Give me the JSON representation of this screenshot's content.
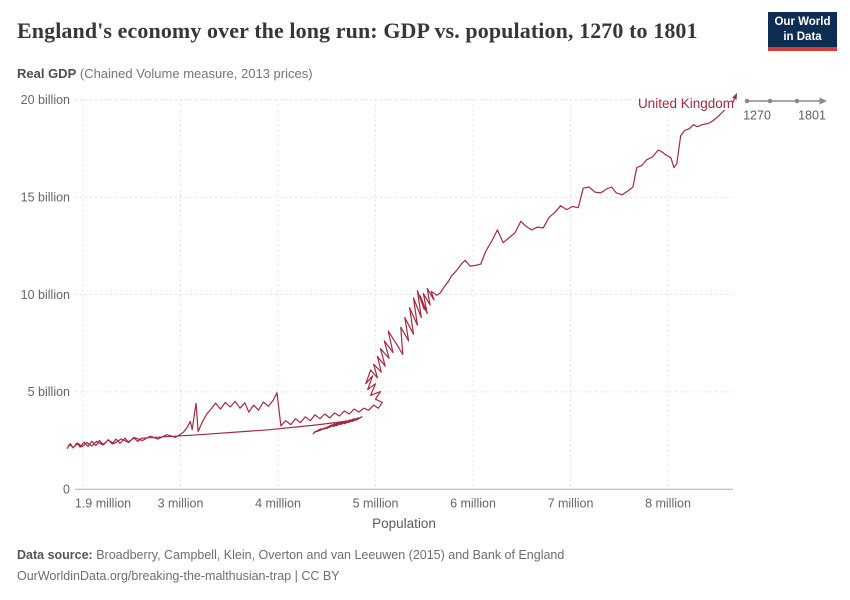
{
  "header": {
    "title": "England's economy over the long run: GDP vs. population, 1270 to 1801",
    "logo": {
      "line1": "Our World",
      "line2": "in Data"
    }
  },
  "subtitle": {
    "metric": "Real GDP",
    "note": " (Chained Volume measure, 2013 prices)"
  },
  "timeline": {
    "start_year": "1270",
    "end_year": "1801"
  },
  "footer": {
    "source_label": "Data source:",
    "source_text": " Broadberry, Campbell, Klein, Overton and van Leeuwen (2015) and Bank of England",
    "link_line": "OurWorldinData.org/breaking-the-malthusian-trap | CC BY"
  },
  "colors": {
    "line": "#a32a3e",
    "logo_bg": "#0d2d52",
    "logo_bar": "#d93a3d",
    "grid": "#e1e1e1",
    "axis": "#adadad",
    "tick_text": "#666666"
  },
  "chart_data": {
    "type": "line",
    "subtype": "connected-scatter",
    "title": "England's economy over the long run: GDP vs. population, 1270 to 1801",
    "xlabel": "Population",
    "ylabel": "Real GDP (billion, 2013 prices)",
    "time_range": [
      1270,
      1801
    ],
    "xlim_millions": [
      1.83,
      8.9
    ],
    "ylim_billions": [
      0,
      20.5
    ],
    "grid": true,
    "x_ticks": [
      {
        "value": 1.9,
        "label": "1.9 million"
      },
      {
        "value": 3,
        "label": "3 million"
      },
      {
        "value": 4,
        "label": "4 million"
      },
      {
        "value": 5,
        "label": "5 million"
      },
      {
        "value": 6,
        "label": "6 million"
      },
      {
        "value": 7,
        "label": "7 million"
      },
      {
        "value": 8,
        "label": "8 million"
      }
    ],
    "y_ticks": [
      {
        "value": 0,
        "label": "0"
      },
      {
        "value": 5,
        "label": "5 billion"
      },
      {
        "value": 10,
        "label": "10 billion"
      },
      {
        "value": 15,
        "label": "15 billion"
      },
      {
        "value": 20,
        "label": "20 billion"
      }
    ],
    "series": [
      {
        "name": "United Kingdom",
        "color": "#a32a3e",
        "units": [
          "population_millions",
          "real_gdp_billions"
        ],
        "points": [
          [
            4.36,
            2.85
          ],
          [
            4.4,
            3.0
          ],
          [
            4.37,
            2.92
          ],
          [
            4.44,
            3.1
          ],
          [
            4.4,
            2.96
          ],
          [
            4.48,
            3.15
          ],
          [
            4.43,
            3.02
          ],
          [
            4.52,
            3.22
          ],
          [
            4.47,
            3.08
          ],
          [
            4.55,
            3.3
          ],
          [
            4.5,
            3.12
          ],
          [
            4.58,
            3.36
          ],
          [
            4.53,
            3.18
          ],
          [
            4.62,
            3.42
          ],
          [
            4.57,
            3.22
          ],
          [
            4.66,
            3.46
          ],
          [
            4.6,
            3.26
          ],
          [
            4.7,
            3.52
          ],
          [
            4.64,
            3.32
          ],
          [
            4.74,
            3.56
          ],
          [
            4.68,
            3.36
          ],
          [
            4.78,
            3.62
          ],
          [
            4.72,
            3.42
          ],
          [
            4.82,
            3.66
          ],
          [
            4.76,
            3.48
          ],
          [
            4.86,
            3.72
          ],
          [
            4.81,
            3.56
          ],
          [
            4.4,
            3.3
          ],
          [
            3.9,
            3.05
          ],
          [
            3.2,
            2.8
          ],
          [
            2.6,
            2.62
          ],
          [
            2.56,
            2.45
          ],
          [
            2.52,
            2.66
          ],
          [
            2.47,
            2.4
          ],
          [
            2.43,
            2.62
          ],
          [
            2.38,
            2.36
          ],
          [
            2.34,
            2.58
          ],
          [
            2.3,
            2.32
          ],
          [
            2.26,
            2.54
          ],
          [
            2.21,
            2.28
          ],
          [
            2.17,
            2.5
          ],
          [
            2.13,
            2.24
          ],
          [
            2.09,
            2.46
          ],
          [
            2.05,
            2.2
          ],
          [
            2.01,
            2.42
          ],
          [
            1.97,
            2.16
          ],
          [
            1.94,
            2.38
          ],
          [
            1.9,
            2.12
          ],
          [
            1.87,
            2.34
          ],
          [
            1.84,
            2.1
          ],
          [
            1.86,
            2.3
          ],
          [
            1.9,
            2.14
          ],
          [
            1.95,
            2.36
          ],
          [
            1.99,
            2.18
          ],
          [
            2.04,
            2.4
          ],
          [
            2.09,
            2.22
          ],
          [
            2.14,
            2.46
          ],
          [
            2.2,
            2.28
          ],
          [
            2.26,
            2.52
          ],
          [
            2.32,
            2.34
          ],
          [
            2.39,
            2.58
          ],
          [
            2.46,
            2.42
          ],
          [
            2.53,
            2.64
          ],
          [
            2.61,
            2.5
          ],
          [
            2.69,
            2.72
          ],
          [
            2.77,
            2.58
          ],
          [
            2.86,
            2.8
          ],
          [
            2.95,
            2.66
          ],
          [
            3.03,
            2.92
          ],
          [
            3.07,
            3.18
          ],
          [
            3.1,
            3.48
          ],
          [
            3.12,
            3.06
          ],
          [
            3.14,
            3.78
          ],
          [
            3.15,
            4.12
          ],
          [
            3.16,
            4.4
          ],
          [
            3.18,
            2.96
          ],
          [
            3.22,
            3.42
          ],
          [
            3.27,
            3.86
          ],
          [
            3.32,
            4.16
          ],
          [
            3.36,
            4.42
          ],
          [
            3.41,
            4.12
          ],
          [
            3.46,
            4.46
          ],
          [
            3.51,
            4.22
          ],
          [
            3.56,
            4.52
          ],
          [
            3.61,
            4.16
          ],
          [
            3.66,
            4.44
          ],
          [
            3.7,
            3.96
          ],
          [
            3.75,
            4.32
          ],
          [
            3.8,
            4.06
          ],
          [
            3.85,
            4.48
          ],
          [
            3.9,
            4.26
          ],
          [
            3.95,
            4.56
          ],
          [
            3.99,
            4.95
          ],
          [
            4.03,
            3.25
          ],
          [
            4.08,
            3.52
          ],
          [
            4.13,
            3.32
          ],
          [
            4.18,
            3.62
          ],
          [
            4.23,
            3.42
          ],
          [
            4.28,
            3.72
          ],
          [
            4.33,
            3.52
          ],
          [
            4.38,
            3.82
          ],
          [
            4.43,
            3.62
          ],
          [
            4.48,
            3.86
          ],
          [
            4.53,
            3.66
          ],
          [
            4.58,
            3.92
          ],
          [
            4.63,
            3.76
          ],
          [
            4.68,
            4.02
          ],
          [
            4.73,
            3.86
          ],
          [
            4.78,
            4.12
          ],
          [
            4.83,
            3.96
          ],
          [
            4.88,
            4.16
          ],
          [
            4.93,
            4.06
          ],
          [
            4.98,
            4.32
          ],
          [
            5.03,
            4.16
          ],
          [
            5.07,
            4.46
          ],
          [
            5.0,
            4.62
          ],
          [
            5.05,
            5.02
          ],
          [
            4.95,
            4.82
          ],
          [
            5.0,
            5.42
          ],
          [
            4.92,
            5.12
          ],
          [
            4.97,
            5.82
          ],
          [
            4.9,
            5.42
          ],
          [
            4.95,
            6.12
          ],
          [
            5.02,
            5.72
          ],
          [
            4.98,
            6.42
          ],
          [
            5.06,
            6.02
          ],
          [
            5.02,
            6.82
          ],
          [
            5.1,
            6.32
          ],
          [
            5.05,
            7.22
          ],
          [
            5.14,
            6.72
          ],
          [
            5.09,
            7.62
          ],
          [
            5.18,
            7.02
          ],
          [
            5.13,
            8.12
          ],
          [
            5.22,
            7.42
          ],
          [
            5.28,
            6.92
          ],
          [
            5.26,
            8.32
          ],
          [
            5.34,
            7.62
          ],
          [
            5.3,
            8.82
          ],
          [
            5.39,
            7.96
          ],
          [
            5.35,
            9.32
          ],
          [
            5.43,
            8.42
          ],
          [
            5.39,
            9.82
          ],
          [
            5.47,
            8.82
          ],
          [
            5.43,
            10.2
          ],
          [
            5.5,
            9.22
          ],
          [
            5.46,
            9.92
          ],
          [
            5.53,
            9.02
          ],
          [
            5.49,
            10.06
          ],
          [
            5.56,
            9.46
          ],
          [
            5.53,
            10.3
          ],
          [
            5.6,
            9.72
          ],
          [
            5.57,
            10.16
          ],
          [
            5.63,
            9.96
          ],
          [
            5.66,
            10.06
          ],
          [
            5.7,
            10.36
          ],
          [
            5.74,
            10.62
          ],
          [
            5.78,
            10.96
          ],
          [
            5.83,
            11.22
          ],
          [
            5.88,
            11.56
          ],
          [
            5.92,
            11.76
          ],
          [
            5.97,
            11.46
          ],
          [
            6.03,
            11.5
          ],
          [
            6.08,
            11.56
          ],
          [
            6.13,
            12.22
          ],
          [
            6.19,
            12.72
          ],
          [
            6.25,
            13.32
          ],
          [
            6.31,
            12.66
          ],
          [
            6.37,
            12.92
          ],
          [
            6.43,
            13.16
          ],
          [
            6.49,
            13.76
          ],
          [
            6.54,
            13.52
          ],
          [
            6.6,
            13.32
          ],
          [
            6.66,
            13.46
          ],
          [
            6.72,
            13.42
          ],
          [
            6.78,
            13.96
          ],
          [
            6.84,
            14.22
          ],
          [
            6.9,
            14.56
          ],
          [
            6.96,
            14.36
          ],
          [
            7.02,
            14.52
          ],
          [
            7.08,
            14.46
          ],
          [
            7.13,
            15.46
          ],
          [
            7.19,
            15.52
          ],
          [
            7.25,
            15.26
          ],
          [
            7.31,
            15.22
          ],
          [
            7.37,
            15.42
          ],
          [
            7.42,
            15.52
          ],
          [
            7.47,
            15.22
          ],
          [
            7.53,
            15.12
          ],
          [
            7.59,
            15.32
          ],
          [
            7.64,
            15.52
          ],
          [
            7.68,
            16.52
          ],
          [
            7.73,
            16.62
          ],
          [
            7.78,
            16.92
          ],
          [
            7.84,
            17.06
          ],
          [
            7.9,
            17.42
          ],
          [
            7.94,
            17.32
          ],
          [
            7.98,
            17.16
          ],
          [
            8.03,
            17.02
          ],
          [
            8.06,
            16.52
          ],
          [
            8.09,
            16.72
          ],
          [
            8.13,
            18.16
          ],
          [
            8.17,
            18.42
          ],
          [
            8.22,
            18.52
          ],
          [
            8.26,
            18.72
          ],
          [
            8.3,
            18.62
          ],
          [
            8.35,
            18.72
          ],
          [
            8.39,
            18.76
          ],
          [
            8.43,
            18.82
          ],
          [
            8.47,
            18.96
          ],
          [
            8.51,
            19.12
          ],
          [
            8.55,
            19.32
          ],
          [
            8.59,
            19.52
          ],
          [
            8.62,
            19.66
          ],
          [
            8.66,
            19.82
          ]
        ]
      }
    ]
  }
}
